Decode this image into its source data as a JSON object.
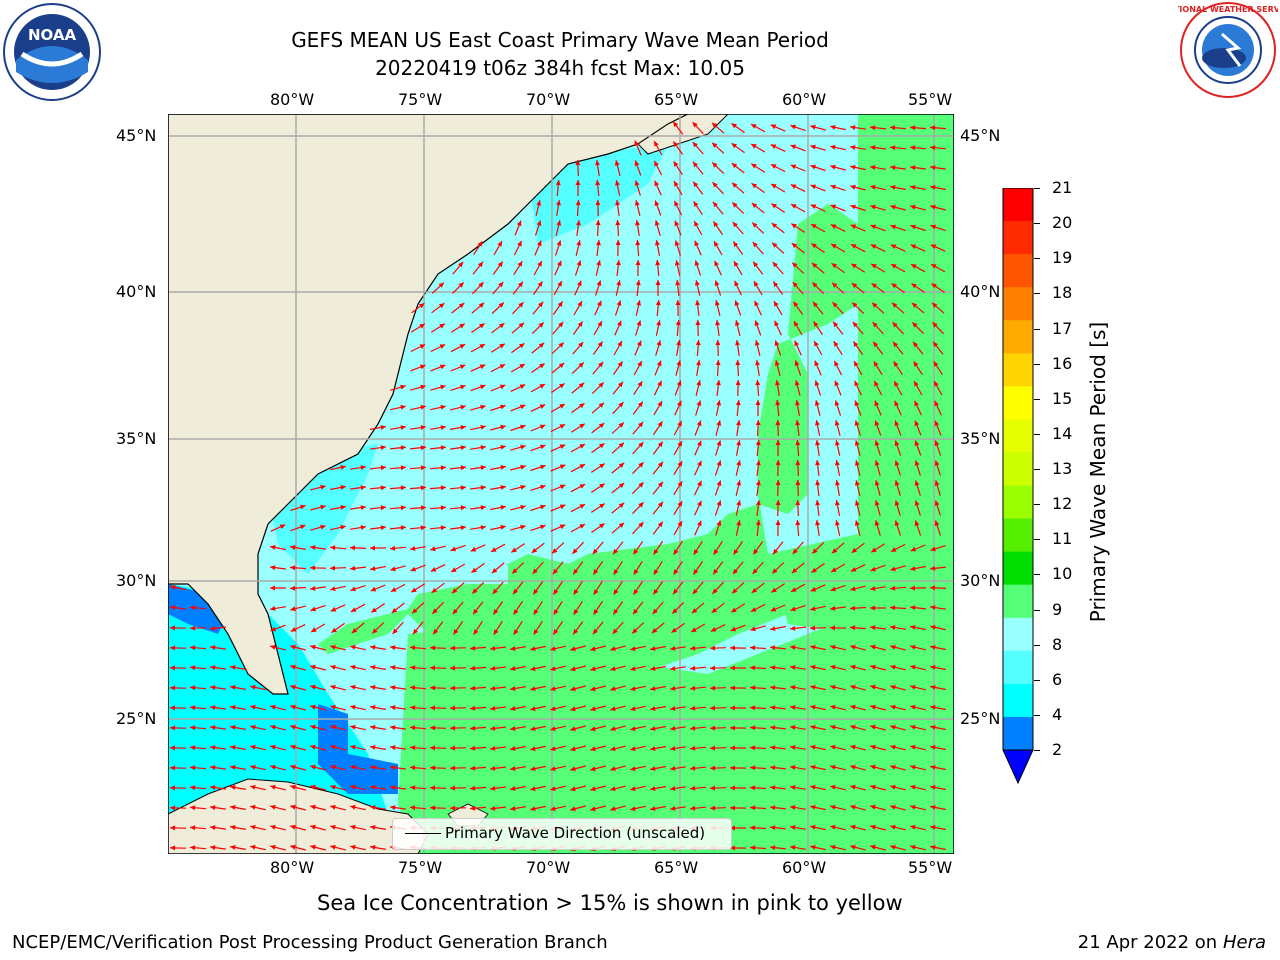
{
  "header": {
    "title_line1": "GEFS MEAN US East Coast Primary Wave Mean Period",
    "title_line2": "20220419 t06z 384h fcst   Max: 10.05"
  },
  "logos": {
    "left": "noaa-logo",
    "left_text": "NOAA",
    "right": "national-weather-service-logo",
    "right_text": "NATIONAL WEATHER SERVICE"
  },
  "map": {
    "lon_labels": [
      "80°W",
      "75°W",
      "70°W",
      "65°W",
      "60°W",
      "55°W"
    ],
    "lat_labels": [
      "45°N",
      "40°N",
      "35°N",
      "30°N",
      "25°N"
    ],
    "land_color": "#efedd9",
    "ocean_color": "#99ffff",
    "legend_label": "Primary Wave Direction (unscaled)",
    "arrow_color": "#ff0000"
  },
  "colorbar": {
    "label": "Primary Wave Mean Period [s]",
    "ticks": [
      "21",
      "20",
      "19",
      "18",
      "17",
      "16",
      "15",
      "14",
      "13",
      "12",
      "11",
      "10",
      "9",
      "8",
      "6",
      "4",
      "2"
    ],
    "colors": [
      "#ff0000",
      "#ff2a00",
      "#ff5500",
      "#ff8000",
      "#ffaa00",
      "#ffd400",
      "#ffff00",
      "#e6ff00",
      "#ccff00",
      "#99ff00",
      "#55ee00",
      "#00dd00",
      "#55ff77",
      "#99ffff",
      "#55ffff",
      "#00ffff",
      "#0080ff"
    ],
    "extend_color": "#0000ff"
  },
  "footer": {
    "note": "Sea Ice Concentration > 15% is shown in pink to yellow",
    "credit": "NCEP/EMC/Verification Post Processing Product Generation Branch",
    "date": "21 Apr 2022 on",
    "machine": "Hera"
  }
}
